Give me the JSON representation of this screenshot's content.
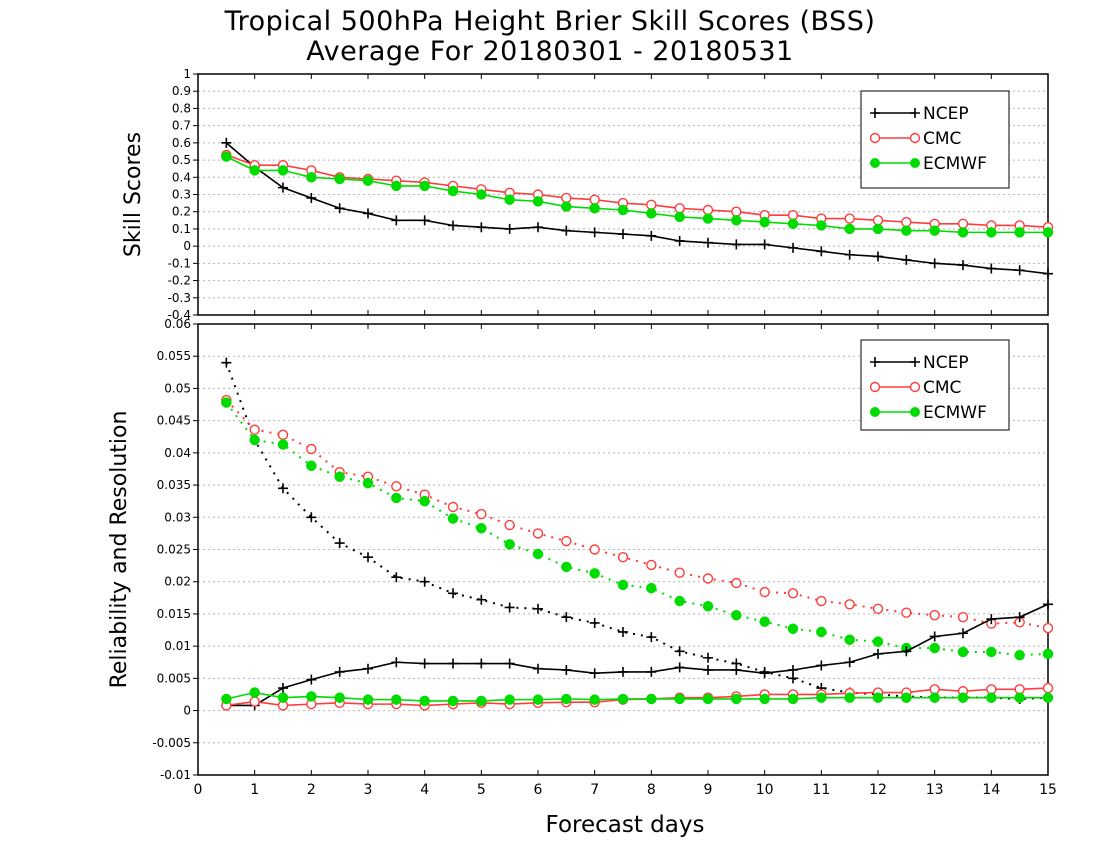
{
  "title_line1": "Tropical 500hPa Height Brier Skill Scores (BSS)",
  "title_line2": "Average For 20180301 - 20180531",
  "xlabel": "Forecast days",
  "colors": {
    "NCEP": "#000000",
    "CMC": "#ff3c3c",
    "ECMWF": "#00dc00"
  },
  "chart_data": [
    {
      "type": "line",
      "ylabel": "Skill Scores",
      "ylim": [
        -0.4,
        1.0
      ],
      "xlim": [
        0,
        15
      ],
      "x_ticks": [
        "0",
        "1",
        "2",
        "3",
        "4",
        "5",
        "6",
        "7",
        "8",
        "9",
        "10",
        "11",
        "12",
        "13",
        "14",
        "15"
      ],
      "y_ticks": [
        "-0.4",
        "-0.3",
        "-0.2",
        "-0.1",
        "0",
        "0.1",
        "0.2",
        "0.3",
        "0.4",
        "0.5",
        "0.6",
        "0.7",
        "0.8",
        "0.9",
        "1"
      ],
      "grid": true,
      "legend": "top-right",
      "x": [
        0.5,
        1,
        1.5,
        2,
        2.5,
        3,
        3.5,
        4,
        4.5,
        5,
        5.5,
        6,
        6.5,
        7,
        7.5,
        8,
        8.5,
        9,
        9.5,
        10,
        10.5,
        11,
        11.5,
        12,
        12.5,
        13,
        13.5,
        14,
        14.5,
        15
      ],
      "series": [
        {
          "name": "NCEP",
          "marker": "plus",
          "values": [
            0.6,
            0.46,
            0.34,
            0.28,
            0.22,
            0.19,
            0.15,
            0.15,
            0.12,
            0.11,
            0.1,
            0.11,
            0.09,
            0.08,
            0.07,
            0.06,
            0.03,
            0.02,
            0.01,
            0.01,
            -0.01,
            -0.03,
            -0.05,
            -0.06,
            -0.08,
            -0.1,
            -0.11,
            -0.13,
            -0.14,
            -0.16
          ]
        },
        {
          "name": "CMC",
          "marker": "circle-open",
          "values": [
            0.53,
            0.47,
            0.47,
            0.44,
            0.4,
            0.39,
            0.38,
            0.37,
            0.35,
            0.33,
            0.31,
            0.3,
            0.28,
            0.27,
            0.25,
            0.24,
            0.22,
            0.21,
            0.2,
            0.18,
            0.18,
            0.16,
            0.16,
            0.15,
            0.14,
            0.13,
            0.13,
            0.12,
            0.12,
            0.11
          ]
        },
        {
          "name": "ECMWF",
          "marker": "circle-filled",
          "values": [
            0.52,
            0.44,
            0.44,
            0.4,
            0.39,
            0.38,
            0.35,
            0.35,
            0.32,
            0.3,
            0.27,
            0.26,
            0.23,
            0.22,
            0.21,
            0.19,
            0.17,
            0.16,
            0.15,
            0.14,
            0.13,
            0.12,
            0.1,
            0.1,
            0.09,
            0.09,
            0.08,
            0.08,
            0.08,
            0.08
          ]
        }
      ]
    },
    {
      "type": "line",
      "ylabel": "Reliability and Resolution",
      "ylim": [
        -0.01,
        0.06
      ],
      "xlim": [
        0,
        15
      ],
      "x_ticks": [
        "0",
        "1",
        "2",
        "3",
        "4",
        "5",
        "6",
        "7",
        "8",
        "9",
        "10",
        "11",
        "12",
        "13",
        "14",
        "15"
      ],
      "y_ticks": [
        "-0.01",
        "-0.005",
        "0",
        "0.005",
        "0.01",
        "0.015",
        "0.02",
        "0.025",
        "0.03",
        "0.035",
        "0.04",
        "0.045",
        "0.05",
        "0.055",
        "0.06"
      ],
      "grid": true,
      "legend": "top-right",
      "x": [
        0.5,
        1,
        1.5,
        2,
        2.5,
        3,
        3.5,
        4,
        4.5,
        5,
        5.5,
        6,
        6.5,
        7,
        7.5,
        8,
        8.5,
        9,
        9.5,
        10,
        10.5,
        11,
        11.5,
        12,
        12.5,
        13,
        13.5,
        14,
        14.5,
        15
      ],
      "series": [
        {
          "name": "NCEP",
          "group": "Resolution",
          "style": "dotted",
          "marker": "plus",
          "values": [
            0.054,
            0.042,
            0.0345,
            0.03,
            0.026,
            0.0238,
            0.0207,
            0.02,
            0.0182,
            0.0172,
            0.016,
            0.0158,
            0.0145,
            0.0136,
            0.0122,
            0.0114,
            0.0092,
            0.0082,
            0.0073,
            0.006,
            0.005,
            0.0035,
            0.0028,
            0.0025,
            0.0022,
            0.002,
            0.002,
            0.002,
            0.0018,
            0.002
          ]
        },
        {
          "name": "CMC",
          "group": "Resolution",
          "style": "dotted",
          "marker": "circle-open",
          "values": [
            0.0482,
            0.0436,
            0.0428,
            0.0406,
            0.037,
            0.0363,
            0.0348,
            0.0335,
            0.0316,
            0.0305,
            0.0288,
            0.0275,
            0.0263,
            0.025,
            0.0238,
            0.0226,
            0.0214,
            0.0205,
            0.0198,
            0.0184,
            0.0182,
            0.017,
            0.0165,
            0.0158,
            0.0152,
            0.0148,
            0.0145,
            0.0135,
            0.0137,
            0.0128
          ]
        },
        {
          "name": "ECMWF",
          "group": "Resolution",
          "style": "dotted",
          "marker": "circle-filled",
          "values": [
            0.0478,
            0.042,
            0.0413,
            0.038,
            0.0363,
            0.0353,
            0.033,
            0.0325,
            0.0298,
            0.0283,
            0.0258,
            0.0243,
            0.0223,
            0.0213,
            0.0195,
            0.019,
            0.017,
            0.0162,
            0.0148,
            0.0138,
            0.0127,
            0.0122,
            0.011,
            0.0107,
            0.0097,
            0.0097,
            0.0091,
            0.0091,
            0.0086,
            0.0088
          ]
        },
        {
          "name": "NCEP",
          "group": "Reliability",
          "style": "solid",
          "marker": "plus",
          "values": [
            0.0008,
            0.0008,
            0.0035,
            0.0048,
            0.006,
            0.0065,
            0.0075,
            0.0073,
            0.0073,
            0.0073,
            0.0073,
            0.0065,
            0.0063,
            0.0058,
            0.006,
            0.006,
            0.0067,
            0.0063,
            0.0063,
            0.0058,
            0.0063,
            0.007,
            0.0075,
            0.0088,
            0.0092,
            0.0115,
            0.012,
            0.0142,
            0.0145,
            0.0165
          ]
        },
        {
          "name": "CMC",
          "group": "Reliability",
          "style": "solid",
          "marker": "circle-open",
          "values": [
            0.0008,
            0.0014,
            0.0008,
            0.001,
            0.0012,
            0.001,
            0.001,
            0.0008,
            0.001,
            0.0012,
            0.001,
            0.0012,
            0.0013,
            0.0013,
            0.0017,
            0.0018,
            0.002,
            0.002,
            0.0022,
            0.0025,
            0.0025,
            0.0025,
            0.0027,
            0.0028,
            0.0028,
            0.0033,
            0.003,
            0.0033,
            0.0033,
            0.0035
          ]
        },
        {
          "name": "ECMWF",
          "group": "Reliability",
          "style": "solid",
          "marker": "circle-filled",
          "values": [
            0.0018,
            0.0028,
            0.002,
            0.0022,
            0.002,
            0.0017,
            0.0017,
            0.0015,
            0.0015,
            0.0015,
            0.0017,
            0.0017,
            0.0018,
            0.0017,
            0.0018,
            0.0018,
            0.0018,
            0.0018,
            0.0018,
            0.0018,
            0.0018,
            0.002,
            0.002,
            0.002,
            0.002,
            0.002,
            0.002,
            0.002,
            0.002,
            0.002
          ]
        }
      ]
    }
  ]
}
